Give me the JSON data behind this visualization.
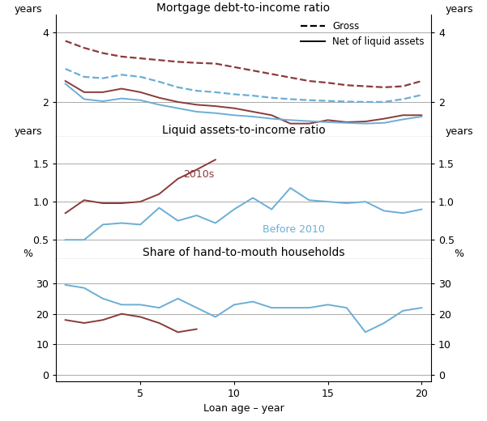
{
  "panel1_title": "Mortgage debt-to-income ratio",
  "panel2_title": "Liquid assets-to-income ratio",
  "panel3_title": "Share of hand-to-mouth households",
  "xlabel": "Loan age – year",
  "x": [
    1,
    2,
    3,
    4,
    5,
    6,
    7,
    8,
    9,
    10,
    11,
    12,
    13,
    14,
    15,
    16,
    17,
    18,
    19,
    20
  ],
  "p1_gross_dashed_brown": [
    3.75,
    3.55,
    3.4,
    3.3,
    3.25,
    3.2,
    3.15,
    3.12,
    3.1,
    3.0,
    2.9,
    2.8,
    2.7,
    2.6,
    2.55,
    2.48,
    2.45,
    2.42,
    2.45,
    2.6
  ],
  "p1_gross_dashed_blue": [
    2.95,
    2.72,
    2.68,
    2.78,
    2.72,
    2.58,
    2.42,
    2.32,
    2.28,
    2.22,
    2.18,
    2.12,
    2.08,
    2.05,
    2.03,
    2.01,
    2.0,
    2.0,
    2.08,
    2.2
  ],
  "p1_net_solid_brown": [
    2.6,
    2.28,
    2.28,
    2.38,
    2.28,
    2.12,
    2.0,
    1.92,
    1.88,
    1.82,
    1.72,
    1.62,
    1.38,
    1.38,
    1.48,
    1.42,
    1.44,
    1.52,
    1.62,
    1.62
  ],
  "p1_net_solid_blue": [
    2.52,
    2.08,
    2.02,
    2.1,
    2.05,
    1.92,
    1.82,
    1.72,
    1.68,
    1.62,
    1.58,
    1.52,
    1.48,
    1.45,
    1.42,
    1.4,
    1.38,
    1.4,
    1.5,
    1.58
  ],
  "p2_2010s_brown": [
    0.85,
    1.02,
    0.98,
    0.98,
    1.0,
    1.1,
    1.3,
    1.42,
    1.55,
    null,
    null,
    null,
    null,
    null,
    null,
    null,
    null,
    null,
    null,
    null
  ],
  "p2_before2010_blue": [
    0.5,
    0.5,
    0.7,
    0.72,
    0.7,
    0.92,
    0.75,
    0.82,
    0.72,
    0.9,
    1.05,
    0.9,
    1.18,
    1.02,
    1.0,
    0.98,
    1.0,
    0.88,
    0.85,
    0.9
  ],
  "p3_2010s_brown": [
    18,
    17,
    18,
    20,
    19,
    17,
    14,
    15,
    null,
    null,
    null,
    null,
    null,
    null,
    null,
    null,
    null,
    null,
    null,
    null
  ],
  "p3_before2010_blue": [
    29.5,
    28.5,
    25,
    23,
    23,
    22,
    25,
    22,
    19,
    23,
    24,
    22,
    22,
    22,
    23,
    22,
    14,
    17,
    21,
    22
  ],
  "color_brown": "#8B3A3A",
  "color_blue": "#6BAED6",
  "panel1_ylim": [
    1.0,
    4.5
  ],
  "panel1_yticks": [
    2.0,
    4.0
  ],
  "panel1_ytick_labels": [
    "2",
    "4"
  ],
  "panel2_ylim": [
    0.25,
    1.85
  ],
  "panel2_yticks": [
    0.5,
    1.0,
    1.5
  ],
  "panel2_ytick_labels": [
    "0.5",
    "1.0",
    "1.5"
  ],
  "panel3_ylim": [
    -2,
    38
  ],
  "panel3_yticks": [
    0,
    10,
    20,
    30
  ],
  "panel3_ytick_labels": [
    "0",
    "10",
    "20",
    "30"
  ],
  "xlim": [
    0.5,
    20.5
  ],
  "xticks": [
    5,
    10,
    15,
    20
  ],
  "grid_color": "#AAAAAA",
  "title_fontsize": 10,
  "tick_fontsize": 9,
  "label_fontsize": 9,
  "anno_fontsize": 9
}
